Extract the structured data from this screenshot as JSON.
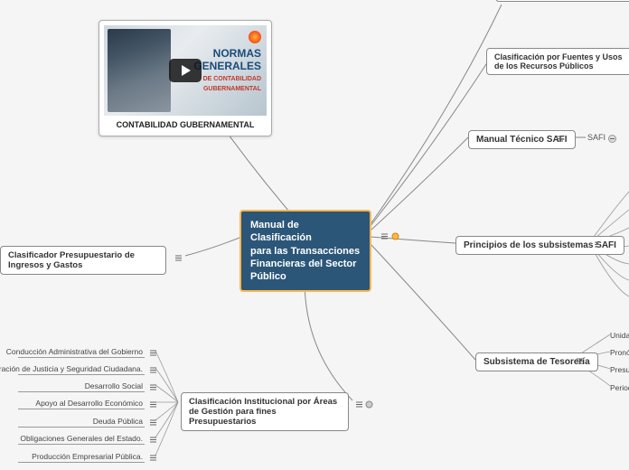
{
  "central": {
    "title_l1": "Manual de Clasificación",
    "title_l2": "para las Transacciones",
    "title_l3": "Financieras del Sector",
    "title_l4": "Público"
  },
  "video": {
    "caption": "CONTABILIDAD GUBERNAMENTAL",
    "overlay_l1": "NORMAS",
    "overlay_l2": "GENERALES",
    "overlay_l3": "DE CONTABILIDAD",
    "overlay_l4": "GUBERNAMENTAL"
  },
  "nodes": {
    "clasif_fuentes": "Clasificación por Fuentes y Usos de los Recursos Públicos",
    "manual_tecnico": "Manual Técnico SAFI",
    "principios": "Principios de los subsistemas SAFI",
    "tesoreria": "Subsistema de Tesorería",
    "clasif_inst": "Clasificación Institucional por Áreas de Gestión para fines Presupuestarios",
    "clasif_presup": "Clasificador Presupuestario de Ingresos y Gastos",
    "safi_tag": "SAFI"
  },
  "leaves_left": [
    "Conducción Administrativa del Gobierno",
    "Administración de Justicia y Seguridad Ciudadana.",
    "Desarrollo Social",
    "Apoyo al Desarrollo Económico",
    "Deuda Pública",
    "Obligaciones Generales del Estado.",
    "Producción Empresarial Pública."
  ],
  "leaves_right": [
    "Unidad",
    "Pronóstic",
    "Presupu",
    "Periodic"
  ],
  "colors": {
    "bg": "#f5f5f5",
    "central_bg": "#2b5678",
    "central_border": "#ffb84d",
    "node_border": "#888888",
    "connector": "#888888",
    "text": "#333333"
  }
}
